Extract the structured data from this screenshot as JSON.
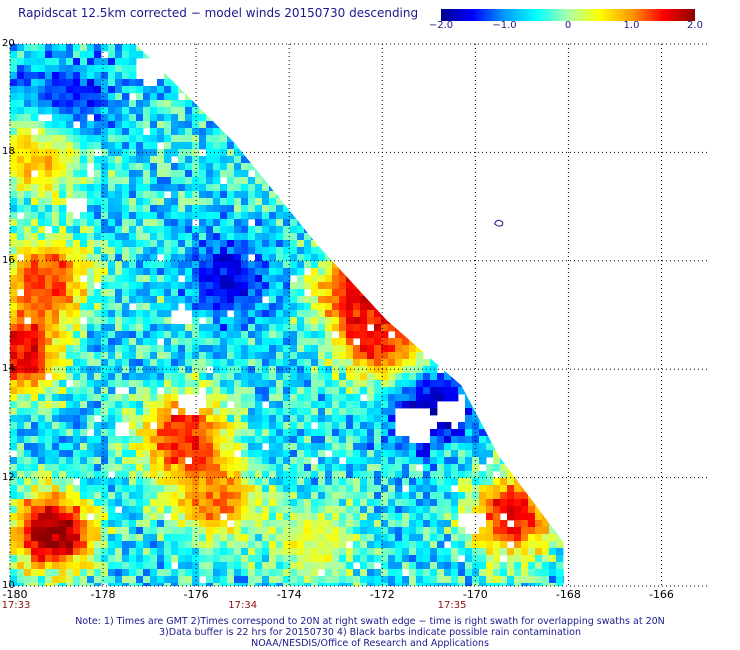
{
  "title": "Rapidscat 12.5km corrected − model winds 20150730 descending",
  "colorbar": {
    "min": -2.0,
    "max": 2.0,
    "ticks": [
      {
        "value": -2.0,
        "label": "−2.0"
      },
      {
        "value": -1.0,
        "label": "−1.0"
      },
      {
        "value": 0,
        "label": "0"
      },
      {
        "value": 1.0,
        "label": "1.0"
      },
      {
        "value": 2.0,
        "label": "2.0"
      }
    ],
    "colors": [
      "#00008c",
      "#0000ff",
      "#0099ff",
      "#00ffff",
      "#aaffaa",
      "#ffff00",
      "#ff9900",
      "#ff0000",
      "#8b0000"
    ]
  },
  "map": {
    "lon_range": [
      -180,
      -165
    ],
    "lat_range": [
      10,
      20
    ],
    "lat_labels": [
      {
        "value": 20,
        "label": "20"
      },
      {
        "value": 18,
        "label": "18"
      },
      {
        "value": 16,
        "label": "16"
      },
      {
        "value": 14,
        "label": "14"
      },
      {
        "value": 12,
        "label": "12"
      },
      {
        "value": 10,
        "label": "10"
      }
    ],
    "lon_labels": [
      {
        "value": -180,
        "label": "-180"
      },
      {
        "value": -178,
        "label": "-178"
      },
      {
        "value": -176,
        "label": "-176"
      },
      {
        "value": -174,
        "label": "-174"
      },
      {
        "value": -172,
        "label": "-172"
      },
      {
        "value": -170,
        "label": "-170"
      },
      {
        "value": -168,
        "label": "-168"
      },
      {
        "value": -166,
        "label": "-166"
      }
    ],
    "time_labels": [
      {
        "lon": -180,
        "label": "17:33"
      },
      {
        "lon": -175,
        "label": "17:34"
      },
      {
        "lon": -170.5,
        "label": "17:35"
      }
    ],
    "swath_edge": [
      {
        "lat": 20,
        "lon": -180
      },
      {
        "lat": 20,
        "lon": -177.3
      },
      {
        "lat": 18.2,
        "lon": -175.2
      },
      {
        "lat": 16.3,
        "lon": -173.4
      },
      {
        "lat": 14.9,
        "lon": -171.9
      },
      {
        "lat": 13.7,
        "lon": -170.3
      },
      {
        "lat": 12.4,
        "lon": -169.5
      },
      {
        "lat": 10.8,
        "lon": -168.1
      },
      {
        "lat": 10,
        "lon": -168.1
      },
      {
        "lat": 10,
        "lon": -180
      }
    ],
    "features": [
      {
        "name": "orange-tongue-north",
        "lat": 18.0,
        "lon": -179.3,
        "value": 1.3
      },
      {
        "name": "low-anomaly-nw",
        "lat": 18.9,
        "lon": -178.8,
        "value": -1.8
      },
      {
        "name": "high-anomaly-west",
        "lat": 15.7,
        "lon": -179.2,
        "value": 1.6
      },
      {
        "name": "red-patch-west",
        "lat": 14.3,
        "lon": -179.8,
        "value": 1.9
      },
      {
        "name": "blue-band-central",
        "lat": 15.7,
        "lon": -175.3,
        "value": -1.7
      },
      {
        "name": "high-anomaly-east",
        "lat": 15.5,
        "lon": -172.5,
        "value": 1.9
      },
      {
        "name": "red-dots-east",
        "lat": 14.5,
        "lon": -172.0,
        "value": 1.8
      },
      {
        "name": "low-anomaly-east",
        "lat": 13.3,
        "lon": -171.0,
        "value": -2.0
      },
      {
        "name": "red-patch-center",
        "lat": 12.8,
        "lon": -176.3,
        "value": 1.8
      },
      {
        "name": "orange-patch-south",
        "lat": 11.6,
        "lon": -175.6,
        "value": 1.3
      },
      {
        "name": "green-yellow-south",
        "lat": 10.8,
        "lon": -173.5,
        "value": 0.5
      },
      {
        "name": "red-patch-southeast",
        "lat": 11.3,
        "lon": -169.2,
        "value": 1.8
      },
      {
        "name": "max-anomaly-sw",
        "lat": 11.0,
        "lon": -179.1,
        "value": 2.3
      }
    ],
    "nodata_patches": [
      {
        "lat": 19.5,
        "lon": -177.0,
        "r": 0.35
      },
      {
        "lat": 17.0,
        "lon": -178.6,
        "r": 0.25
      },
      {
        "lat": 15.0,
        "lon": -176.3,
        "r": 0.25
      },
      {
        "lat": 13.4,
        "lon": -176.1,
        "r": 0.3
      },
      {
        "lat": 13.0,
        "lon": -171.3,
        "r": 0.45
      },
      {
        "lat": 13.2,
        "lon": -170.5,
        "r": 0.35
      },
      {
        "lat": 11.2,
        "lon": -170.1,
        "r": 0.3
      },
      {
        "lat": 12.9,
        "lon": -177.6,
        "r": 0.2
      },
      {
        "lat": 16.5,
        "lon": -173.0,
        "r": 0.2
      }
    ],
    "island": {
      "lat": 16.7,
      "lon": -169.5
    }
  },
  "notes": [
    "Note: 1) Times are GMT 2)Times correspond to 20N at right swath edge − time is right swath for overlapping swaths at 20N",
    "3)Data buffer is 22 hrs for 20150730 4) Black barbs indicate possible rain contamination",
    "NOAA/NESDIS/Office of Research and Applications"
  ]
}
